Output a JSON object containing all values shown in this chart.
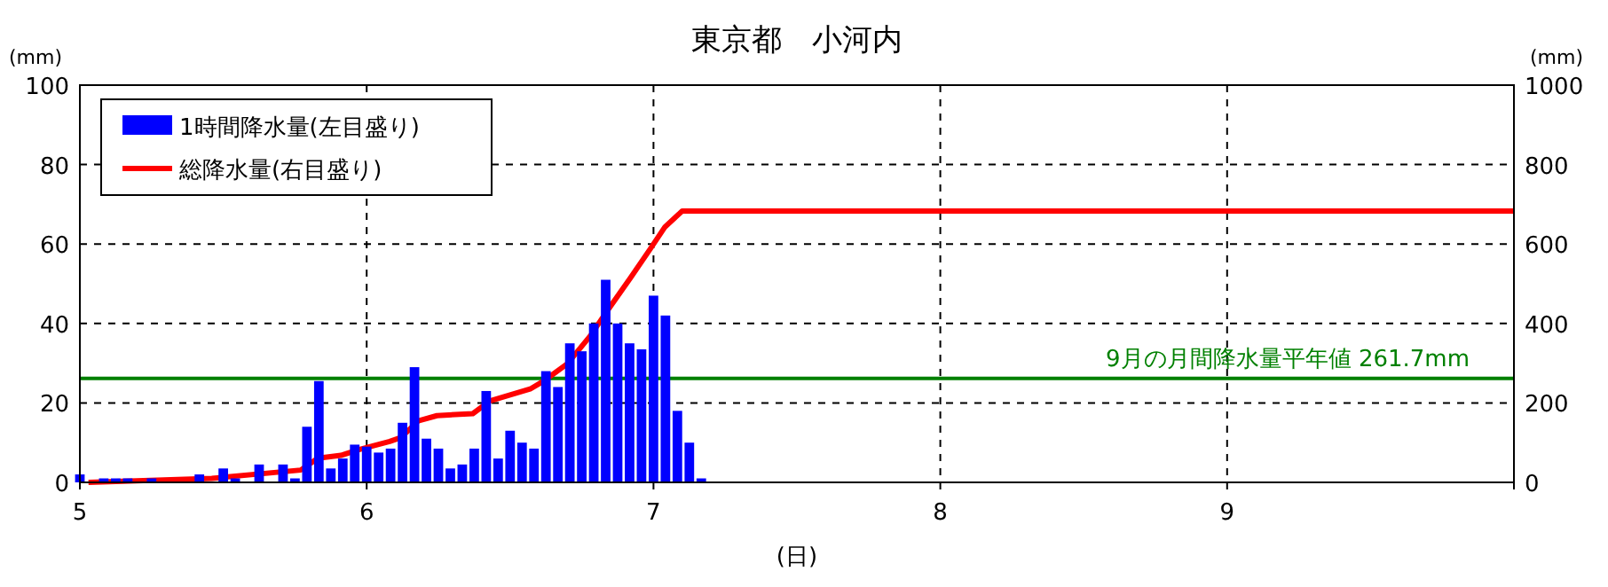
{
  "chart_data": {
    "type": "bar",
    "title": "東京都　小河内",
    "xlabel": "(日)",
    "ylabel": "(mm)",
    "y2label": "(mm)",
    "xlim": [
      5,
      10
    ],
    "xticks": [
      5,
      6,
      7,
      8,
      9,
      {
        "value": 10,
        "label": null
      }
    ],
    "ylim": [
      0,
      100
    ],
    "yticks": [
      0,
      20,
      40,
      60,
      80,
      100
    ],
    "y2lim": [
      0,
      1000
    ],
    "y2ticks": [
      0,
      200,
      400,
      600,
      800,
      1000
    ],
    "grid": true,
    "legend": "top left",
    "series": [
      {
        "name": "1時間降水量(左目盛り)",
        "color": "#0000ff",
        "x": [
          5,
          5.0833,
          5.125,
          5.1667,
          5.25,
          5.4167,
          5.5,
          5.5417,
          5.625,
          5.7083,
          5.75,
          5.7917,
          5.8333,
          5.875,
          5.9167,
          5.9583,
          6,
          6.0417,
          6.0833,
          6.125,
          6.1667,
          6.2083,
          6.25,
          6.2917,
          6.3333,
          6.375,
          6.4167,
          6.4583,
          6.5,
          6.5417,
          6.5833,
          6.625,
          6.6667,
          6.7083,
          6.75,
          6.7917,
          6.8333,
          6.875,
          6.9167,
          6.9583,
          7,
          7.0417,
          7.0833,
          7.125,
          7.1667
        ],
        "values": [
          2,
          1,
          1,
          1,
          1,
          2,
          3.5,
          1,
          4.5,
          4.5,
          1,
          14,
          25.5,
          3.5,
          6,
          9.5,
          9,
          7.5,
          8.5,
          15,
          29,
          11,
          8.5,
          3.5,
          4.5,
          8.5,
          23,
          6,
          13,
          10,
          8.5,
          28,
          24,
          35,
          33,
          40,
          51,
          40,
          35,
          33.5,
          47,
          42,
          18,
          10,
          1
        ]
      },
      {
        "name": "総降水量(右目盛り)",
        "type": "line",
        "axis": "y2",
        "color": "#ff0000",
        "line_style": "solid",
        "marker": "none",
        "x": [
          5.03,
          5.46,
          5.77,
          5.83,
          5.91,
          5.975,
          6.08,
          6.12,
          6.18,
          6.245,
          6.37,
          6.43,
          6.57,
          6.615,
          6.7,
          6.78,
          6.84,
          6.92,
          6.99,
          7.04,
          7.1,
          10
        ],
        "values": [
          0,
          10,
          31,
          61,
          68,
          83,
          103,
          113,
          155,
          168,
          173,
          205,
          235,
          254,
          299,
          369,
          433,
          515,
          589,
          643,
          683,
          683
        ]
      }
    ],
    "ref_lines": [
      {
        "axis": "y2",
        "value": 261.7,
        "label": "9月の月間降水量平年値  261.7mm",
        "color": "#008000"
      }
    ]
  }
}
